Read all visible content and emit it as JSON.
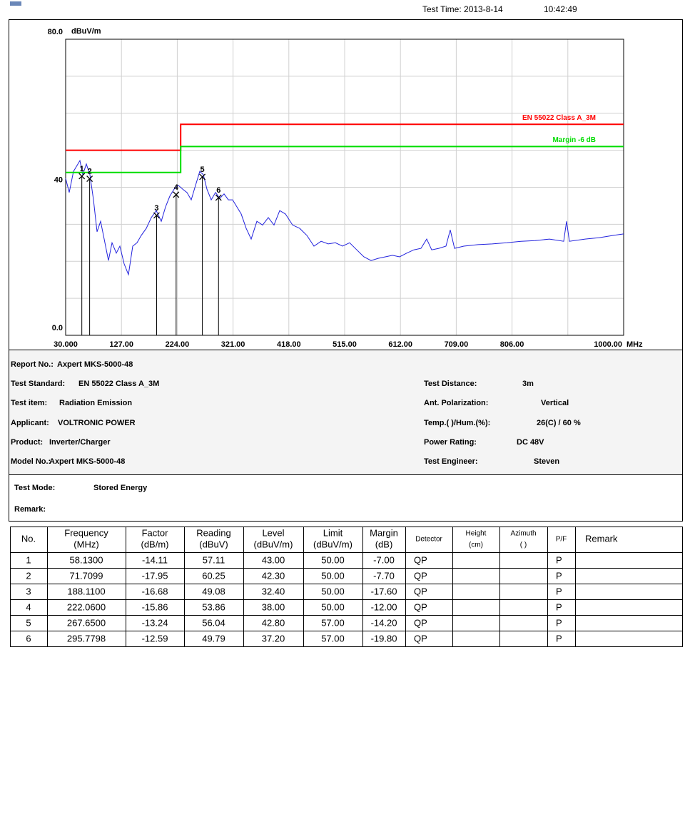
{
  "header": {
    "test_time_label": "Test Time: 2013-8-14",
    "test_time": "10:42:49"
  },
  "chart_data": {
    "type": "line",
    "y_unit": "dBuV/m",
    "x_unit": "MHz",
    "xlim": [
      30,
      1000
    ],
    "ylim": [
      0,
      80
    ],
    "xticks": [
      {
        "value": 30,
        "label": "30.000"
      },
      {
        "value": 127,
        "label": "127.00"
      },
      {
        "value": 224,
        "label": "224.00"
      },
      {
        "value": 321,
        "label": "321.00"
      },
      {
        "value": 418,
        "label": "418.00"
      },
      {
        "value": 515,
        "label": "515.00"
      },
      {
        "value": 612,
        "label": "612.00"
      },
      {
        "value": 709,
        "label": "709.00"
      },
      {
        "value": 806,
        "label": "806.00"
      },
      {
        "value": 903,
        "label": null
      },
      {
        "value": 1000,
        "label": "1000.00"
      }
    ],
    "yticks": [
      {
        "value": 0,
        "label": "0.0"
      },
      {
        "value": 10,
        "label": null
      },
      {
        "value": 20,
        "label": null
      },
      {
        "value": 30,
        "label": null
      },
      40,
      {
        "value": 50,
        "label": null
      },
      {
        "value": 60,
        "label": null
      },
      {
        "value": 70,
        "label": null
      },
      {
        "value": 80,
        "label": "80.0"
      }
    ],
    "grid": true,
    "series": [
      {
        "color": "#2222dd",
        "x": [
          30,
          36.2,
          43.6,
          49.8,
          54.8,
          59.8,
          66,
          72.2,
          78.4,
          84.6,
          90.8,
          97,
          104.4,
          110.6,
          118.1,
          124.3,
          131.7,
          139.2,
          146.6,
          154,
          161.5,
          170.2,
          178.9,
          187.5,
          196.2,
          203.7,
          211.1,
          218.5,
          226,
          233.4,
          240.9,
          248.3,
          255.8,
          263.2,
          269.4,
          275.6,
          283,
          290.5,
          297.9,
          305.4,
          312.8,
          320.3,
          327.7,
          335.1,
          343.8,
          352.5,
          362.4,
          372.3,
          382.3,
          392.2,
          402.1,
          412,
          424.4,
          436.9,
          449.3,
          461.7,
          474.1,
          486.5,
          498.9,
          511.3,
          523.7,
          536.1,
          548.5,
          560.9,
          573.3,
          585.7,
          598.1,
          610.5,
          622.9,
          635.3,
          647.7,
          657.6,
          666.3,
          678.7,
          691.1,
          698.6,
          706,
          722.1,
          746.9,
          771.7,
          796.6,
          821.4,
          846.2,
          871,
          895.8,
          900.8,
          905.7,
          933,
          957.8,
          982.6,
          1000
        ],
        "values": [
          42.4,
          38.6,
          44.3,
          45.9,
          47.2,
          43.4,
          46.3,
          43.4,
          36.6,
          28,
          30.8,
          26,
          20.2,
          25,
          22.2,
          24.1,
          19.3,
          16.4,
          24.1,
          25,
          27,
          28.9,
          31.8,
          33.7,
          30.8,
          34.7,
          37.6,
          39.5,
          40.5,
          39.5,
          38.6,
          36.6,
          40.5,
          44.3,
          43.4,
          39.5,
          36.6,
          38.6,
          37,
          38.2,
          36.6,
          36.6,
          34.7,
          32.8,
          28.9,
          26,
          30.8,
          29.8,
          31.8,
          29.8,
          33.7,
          32.8,
          29.8,
          28.9,
          27,
          24.1,
          25.4,
          24.7,
          25,
          24.1,
          25,
          23.1,
          21.2,
          20.2,
          20.8,
          21.2,
          21.6,
          21.2,
          22.2,
          23.1,
          23.5,
          26,
          23.1,
          23.5,
          24.1,
          28.5,
          23.5,
          24.1,
          24.5,
          24.7,
          25,
          25.4,
          25.6,
          26,
          25.4,
          30.8,
          25.4,
          26,
          26.4,
          27,
          27.4
        ]
      },
      {
        "name": "EN 55022 Class A_3M",
        "color": "#ff0000",
        "x": [
          30,
          230,
          230,
          1000
        ],
        "values": [
          50,
          50,
          57,
          57
        ]
      },
      {
        "name": "Margin -6 dB",
        "color": "#00dd00",
        "x": [
          30,
          230,
          230,
          1000
        ],
        "values": [
          44,
          44,
          51,
          51
        ]
      }
    ],
    "markers": {
      "labels": [
        "1",
        "2",
        "3",
        "4",
        "5",
        "6"
      ],
      "x": [
        58.13,
        71.7099,
        188.11,
        222.06,
        267.65,
        295.7798
      ],
      "values": [
        43.0,
        42.3,
        32.4,
        38.0,
        42.8,
        37.2
      ]
    }
  },
  "info": {
    "left": [
      {
        "label": "Report No.:",
        "value": "Axpert MKS-5000-48"
      },
      {
        "label": "Test Standard:",
        "value": "EN 55022 Class A_3M"
      },
      {
        "label": "Test item:",
        "value": "Radiation Emission"
      },
      {
        "label": "Applicant:",
        "value": "VOLTRONIC POWER"
      },
      {
        "label": "Product:",
        "value": "Inverter/Charger"
      },
      {
        "label": "Model No.:",
        "value": "Axpert MKS-5000-48"
      }
    ],
    "right": [
      {
        "label": "Test Distance:",
        "value": "3m"
      },
      {
        "label": "Ant. Polarization:",
        "value": "Vertical"
      },
      {
        "label": "Temp.(  )/Hum.(%):",
        "value": "26(C) / 60 %"
      },
      {
        "label": "Power Rating:",
        "value": "DC 48V"
      },
      {
        "label": "Test Engineer:",
        "value": "Steven"
      }
    ],
    "test_mode_label": "Test Mode:",
    "test_mode": "Stored Energy",
    "remark_label": "Remark:"
  },
  "table": {
    "header": [
      [
        "No."
      ],
      [
        "Frequency",
        "(MHz)"
      ],
      [
        "Factor",
        "(dB/m)"
      ],
      [
        "Reading",
        "(dBuV)"
      ],
      [
        "Level",
        "(dBuV/m)"
      ],
      [
        "Limit",
        "(dBuV/m)"
      ],
      [
        "Margin",
        "(dB)"
      ],
      [
        "Detector"
      ],
      [
        "Height",
        "(cm)"
      ],
      [
        "Azimuth",
        "(  )"
      ],
      [
        "P/F"
      ],
      [
        "Remark"
      ]
    ],
    "rows": [
      [
        "1",
        "58.1300",
        "-14.11",
        "57.11",
        "43.00",
        "50.00",
        "-7.00",
        "QP",
        null,
        null,
        "P",
        null
      ],
      [
        "2",
        "71.7099",
        "-17.95",
        "60.25",
        "42.30",
        "50.00",
        "-7.70",
        "QP",
        null,
        null,
        "P",
        null
      ],
      [
        "3",
        "188.1100",
        "-16.68",
        "49.08",
        "32.40",
        "50.00",
        "-17.60",
        "QP",
        null,
        null,
        "P",
        null
      ],
      [
        "4",
        "222.0600",
        "-15.86",
        "53.86",
        "38.00",
        "50.00",
        "-12.00",
        "QP",
        null,
        null,
        "P",
        null
      ],
      [
        "5",
        "267.6500",
        "-13.24",
        "56.04",
        "42.80",
        "57.00",
        "-14.20",
        "QP",
        null,
        null,
        "P",
        null
      ],
      [
        "6",
        "295.7798",
        "-12.59",
        "49.79",
        "37.20",
        "57.00",
        "-19.80",
        "QP",
        null,
        null,
        "P",
        null
      ]
    ]
  }
}
